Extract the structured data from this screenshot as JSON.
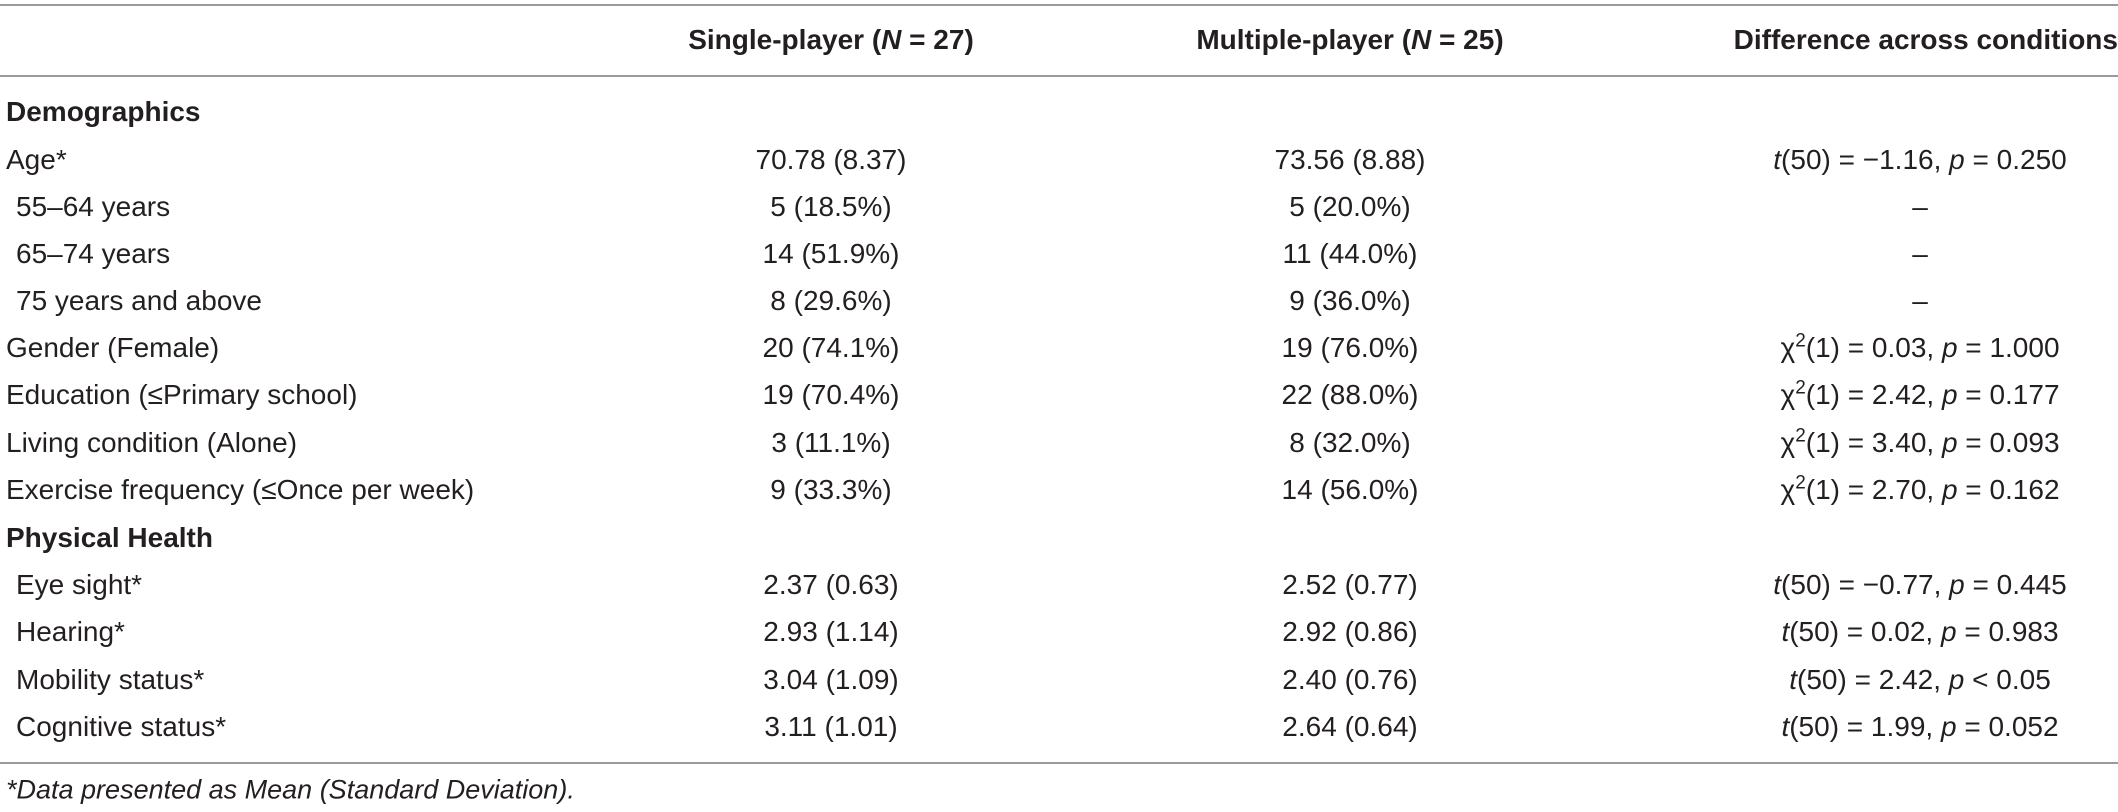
{
  "header": {
    "single_pre": "Single-player (",
    "single_n": "N",
    "single_post": " = 27)",
    "multi_pre": "Multiple-player (",
    "multi_n": "N",
    "multi_post": " = 25)",
    "difference": "Difference across conditions"
  },
  "sections": {
    "demographics": "Demographics",
    "physical": "Physical Health"
  },
  "rows": [
    {
      "label": "Age*",
      "single": "70.78 (8.37)",
      "multi": "73.56 (8.88)",
      "stat": "t",
      "sup": "",
      "df": "(50) = −1.16, ",
      "p": "p",
      "p_rest": " = 0.250"
    },
    {
      "label": "55–64 years",
      "single": "5 (18.5%)",
      "multi": "5 (20.0%)",
      "dash": "–"
    },
    {
      "label": "65–74 years",
      "single": "14 (51.9%)",
      "multi": "11 (44.0%)",
      "dash": "–"
    },
    {
      "label": "75 years and above",
      "single": "8 (29.6%)",
      "multi": "9 (36.0%)",
      "dash": "–"
    },
    {
      "label": "Gender (Female)",
      "single": "20 (74.1%)",
      "multi": "19 (76.0%)",
      "stat": "χ",
      "sup": "2",
      "df": "(1) = 0.03, ",
      "p": "p",
      "p_rest": " = 1.000"
    },
    {
      "label": "Education (≤Primary school)",
      "single": "19 (70.4%)",
      "multi": "22 (88.0%)",
      "stat": "χ",
      "sup": "2",
      "df": "(1) = 2.42, ",
      "p": "p",
      "p_rest": " = 0.177"
    },
    {
      "label": "Living condition (Alone)",
      "single": "3 (11.1%)",
      "multi": "8 (32.0%)",
      "stat": "χ",
      "sup": "2",
      "df": "(1) = 3.40, ",
      "p": "p",
      "p_rest": " = 0.093"
    },
    {
      "label": "Exercise frequency (≤Once per week)",
      "single": "9 (33.3%)",
      "multi": "14 (56.0%)",
      "stat": "χ",
      "sup": "2",
      "df": "(1) = 2.70, ",
      "p": "p",
      "p_rest": " = 0.162"
    },
    {
      "label": "Eye sight*",
      "single": "2.37 (0.63)",
      "multi": "2.52 (0.77)",
      "stat": "t",
      "sup": "",
      "df": "(50) = −0.77, ",
      "p": "p",
      "p_rest": " = 0.445"
    },
    {
      "label": "Hearing*",
      "single": "2.93 (1.14)",
      "multi": "2.92 (0.86)",
      "stat": "t",
      "sup": "",
      "df": "(50) = 0.02, ",
      "p": "p",
      "p_rest": " = 0.983"
    },
    {
      "label": "Mobility status*",
      "single": "3.04 (1.09)",
      "multi": "2.40 (0.76)",
      "stat": "t",
      "sup": "",
      "df": "(50) = 2.42, ",
      "p": "p",
      "p_rest": " < 0.05"
    },
    {
      "label": "Cognitive status*",
      "single": "3.11 (1.01)",
      "multi": "2.64 (0.64)",
      "stat": "t",
      "sup": "",
      "df": "(50) = 1.99, ",
      "p": "p",
      "p_rest": " = 0.052"
    }
  ],
  "footnote": "*Data presented as Mean (Standard Deviation)."
}
